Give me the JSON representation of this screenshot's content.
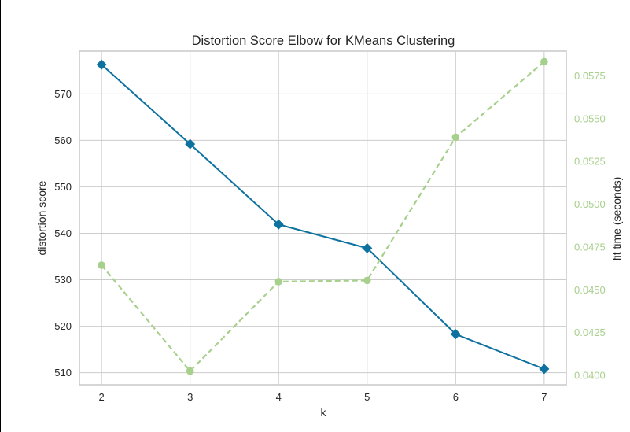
{
  "chart_data": {
    "type": "line",
    "title": "Distortion Score Elbow for KMeans Clustering",
    "xlabel": "k",
    "ylabel": "distortion score",
    "y2label": "fit time (seconds)",
    "x": [
      2,
      3,
      4,
      5,
      6,
      7
    ],
    "xlim": [
      1.75,
      7.25
    ],
    "ylim": [
      507.4,
      579.2
    ],
    "y2lim": [
      0.03945,
      0.05895
    ],
    "yticks": [
      510,
      520,
      530,
      540,
      550,
      560,
      570
    ],
    "y2ticks": [
      "0.0400",
      "0.0425",
      "0.0450",
      "0.0475",
      "0.0500",
      "0.0525",
      "0.0550",
      "0.0575"
    ],
    "grid": true,
    "series": [
      {
        "axis": "left",
        "values": [
          576.3,
          559.2,
          541.9,
          536.8,
          518.3,
          510.8
        ],
        "color": "#0e72a0",
        "marker": "diamond",
        "linestyle": "solid"
      },
      {
        "axis": "right",
        "values": [
          0.04644,
          0.04025,
          0.04548,
          0.04555,
          0.05392,
          0.05833
        ],
        "color": "#a8d08d",
        "marker": "circle",
        "linestyle": "dashed"
      }
    ]
  }
}
